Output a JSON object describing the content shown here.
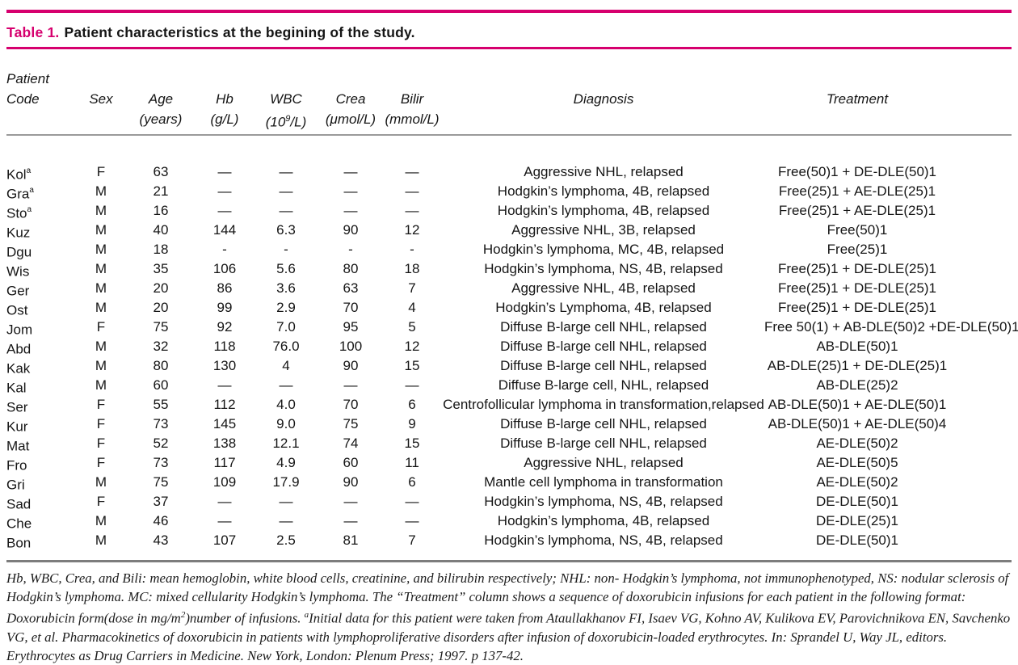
{
  "colors": {
    "accent_magenta": "#d6006e",
    "header_rule_gray": "#9a9a9a",
    "footnote_rule_gray": "#7d7d7d"
  },
  "title": {
    "label": "Table 1.",
    "text": "Patient characteristics at the begining of the study."
  },
  "table": {
    "header": {
      "col1_line1": "Patient",
      "col1_line2": "Code",
      "sex": "Sex",
      "age": "Age",
      "age_unit": "(years)",
      "hb": "Hb",
      "hb_unit": "(g/L)",
      "wbc": "WBC",
      "wbc_unit_pre": "(10",
      "wbc_unit_sup": "9",
      "wbc_unit_post": "/L)",
      "crea": "Crea",
      "crea_unit": "(μmol/L)",
      "bilir": "Bilir",
      "bilir_unit": "(mmol/L)",
      "diagnosis": "Diagnosis",
      "treatment": "Treatment"
    },
    "rows": [
      {
        "code": "Kol",
        "sup": "a",
        "sex": "F",
        "age": "63",
        "hb": "—",
        "wbc": "—",
        "crea": "—",
        "bilir": "—",
        "diagnosis": "Aggressive NHL, relapsed",
        "treatment": "Free(50)1 + DE-DLE(50)1"
      },
      {
        "code": "Gra",
        "sup": "a",
        "sex": "M",
        "age": "21",
        "hb": "—",
        "wbc": "—",
        "crea": "—",
        "bilir": "—",
        "diagnosis": "Hodgkin’s lymphoma, 4B, relapsed",
        "treatment": "Free(25)1 + AE-DLE(25)1"
      },
      {
        "code": "Sto",
        "sup": "a",
        "sex": "M",
        "age": "16",
        "hb": "—",
        "wbc": "—",
        "crea": "—",
        "bilir": "—",
        "diagnosis": "Hodgkin’s lymphoma, 4B, relapsed",
        "treatment": "Free(25)1 + AE-DLE(25)1"
      },
      {
        "code": "Kuz",
        "sup": "",
        "sex": "M",
        "age": "40",
        "hb": "144",
        "wbc": "6.3",
        "crea": "90",
        "bilir": "12",
        "diagnosis": "Aggressive NHL, 3B, relapsed",
        "treatment": "Free(50)1"
      },
      {
        "code": "Dgu",
        "sup": "",
        "sex": "M",
        "age": "18",
        "hb": "-",
        "wbc": "-",
        "crea": "-",
        "bilir": "-",
        "diagnosis": "Hodgkin’s lymphoma, MC, 4B, relapsed",
        "treatment": "Free(25)1"
      },
      {
        "code": "Wis",
        "sup": "",
        "sex": "M",
        "age": "35",
        "hb": "106",
        "wbc": "5.6",
        "crea": "80",
        "bilir": "18",
        "diagnosis": "Hodgkin’s lymphoma, NS, 4B, relapsed",
        "treatment": "Free(25)1 + DE-DLE(25)1"
      },
      {
        "code": "Ger",
        "sup": "",
        "sex": "M",
        "age": "20",
        "hb": "86",
        "wbc": "3.6",
        "crea": "63",
        "bilir": "7",
        "diagnosis": "Aggressive NHL, 4B, relapsed",
        "treatment": "Free(25)1 + DE-DLE(25)1"
      },
      {
        "code": "Ost",
        "sup": "",
        "sex": "M",
        "age": "20",
        "hb": "99",
        "wbc": "2.9",
        "crea": "70",
        "bilir": "4",
        "diagnosis": "Hodgkin’s Lymphoma, 4B, relapsed",
        "treatment": "Free(25)1 + DE-DLE(25)1"
      },
      {
        "code": "Jom",
        "sup": "",
        "sex": "F",
        "age": "75",
        "hb": "92",
        "wbc": "7.0",
        "crea": "95",
        "bilir": "5",
        "diagnosis": "Diffuse B-large cell NHL, relapsed",
        "treatment": "Free 50(1) + AB-DLE(50)2 +DE-DLE(50)1"
      },
      {
        "code": "Abd",
        "sup": "",
        "sex": "M",
        "age": "32",
        "hb": "118",
        "wbc": "76.0",
        "crea": "100",
        "bilir": "12",
        "diagnosis": "Diffuse B-large cell NHL, relapsed",
        "treatment": "AB-DLE(50)1"
      },
      {
        "code": "Kak",
        "sup": "",
        "sex": "M",
        "age": "80",
        "hb": "130",
        "wbc": "4",
        "crea": "90",
        "bilir": "15",
        "diagnosis": "Diffuse B-large cell NHL, relapsed",
        "treatment": "AB-DLE(25)1 + DE-DLE(25)1"
      },
      {
        "code": "Kal",
        "sup": "",
        "sex": "M",
        "age": "60",
        "hb": "—",
        "wbc": "—",
        "crea": "—",
        "bilir": "—",
        "diagnosis": "Diffuse B-large cell, NHL, relapsed",
        "treatment": "AB-DLE(25)2"
      },
      {
        "code": "Ser",
        "sup": "",
        "sex": "F",
        "age": "55",
        "hb": "112",
        "wbc": "4.0",
        "crea": "70",
        "bilir": "6",
        "diagnosis": "Centrofollicular lymphoma in transformation,relapsed",
        "treatment": "AB-DLE(50)1 + AE-DLE(50)1"
      },
      {
        "code": "Kur",
        "sup": "",
        "sex": "F",
        "age": "73",
        "hb": "145",
        "wbc": "9.0",
        "crea": "75",
        "bilir": "9",
        "diagnosis": "Diffuse B-large cell NHL, relapsed",
        "treatment": "AB-DLE(50)1 + AE-DLE(50)4"
      },
      {
        "code": "Mat",
        "sup": "",
        "sex": "F",
        "age": "52",
        "hb": "138",
        "wbc": "12.1",
        "crea": "74",
        "bilir": "15",
        "diagnosis": "Diffuse B-large cell NHL, relapsed",
        "treatment": "AE-DLE(50)2"
      },
      {
        "code": "Fro",
        "sup": "",
        "sex": "F",
        "age": "73",
        "hb": "117",
        "wbc": "4.9",
        "crea": "60",
        "bilir": "11",
        "diagnosis": "Aggressive NHL, relapsed",
        "treatment": "AE-DLE(50)5"
      },
      {
        "code": "Gri",
        "sup": "",
        "sex": "M",
        "age": "75",
        "hb": "109",
        "wbc": "17.9",
        "crea": "90",
        "bilir": "6",
        "diagnosis": "Mantle cell lymphoma in transformation",
        "treatment": "AE-DLE(50)2"
      },
      {
        "code": "Sad",
        "sup": "",
        "sex": "F",
        "age": "37",
        "hb": "—",
        "wbc": "—",
        "crea": "—",
        "bilir": "—",
        "diagnosis": "Hodgkin’s lymphoma, NS, 4B, relapsed",
        "treatment": "DE-DLE(50)1"
      },
      {
        "code": "Che",
        "sup": "",
        "sex": "M",
        "age": "46",
        "hb": "—",
        "wbc": "—",
        "crea": "—",
        "bilir": "—",
        "diagnosis": "Hodgkin’s lymphoma, 4B, relapsed",
        "treatment": "DE-DLE(25)1"
      },
      {
        "code": "Bon",
        "sup": "",
        "sex": "M",
        "age": "43",
        "hb": "107",
        "wbc": "2.5",
        "crea": "81",
        "bilir": "7",
        "diagnosis": "Hodgkin’s lymphoma, NS, 4B, relapsed",
        "treatment": "DE-DLE(50)1"
      }
    ]
  },
  "footnote": {
    "segments": [
      {
        "text": "Hb, WBC, Crea, and Bili: mean hemoglobin, white blood cells, creatinine, and bilirubin respectively; NHL: non- Hodgkin’s lymphoma, not immunophenotyped, NS: nodular sclerosis of Hodgkin’s lymphoma. MC: mixed cellularity Hodgkin’s lymphoma. The “Treatment” column shows a sequence of doxorubicin infusions for each patient in the following format: Doxorubicin form(dose in mg/m",
        "sup": false
      },
      {
        "text": "2",
        "sup": true
      },
      {
        "text": ")number of infusions. ",
        "sup": false
      },
      {
        "text": "a",
        "sup": true
      },
      {
        "text": "Initial data for this patient were taken from Ataullakhanov FI, Isaev VG, Kohno AV, Kulikova EV, Parovichnikova EN, Savchenko VG, et al. Pharmacokinetics of doxorubicin in patients with lymphoproliferative disorders after infusion of doxorubicin-loaded erythrocytes. In: Sprandel U, Way JL, editors. Erythrocytes as Drug Carriers in Medicine. New York, London: Plenum Press; 1997. p 137-42.",
        "sup": false
      }
    ]
  }
}
